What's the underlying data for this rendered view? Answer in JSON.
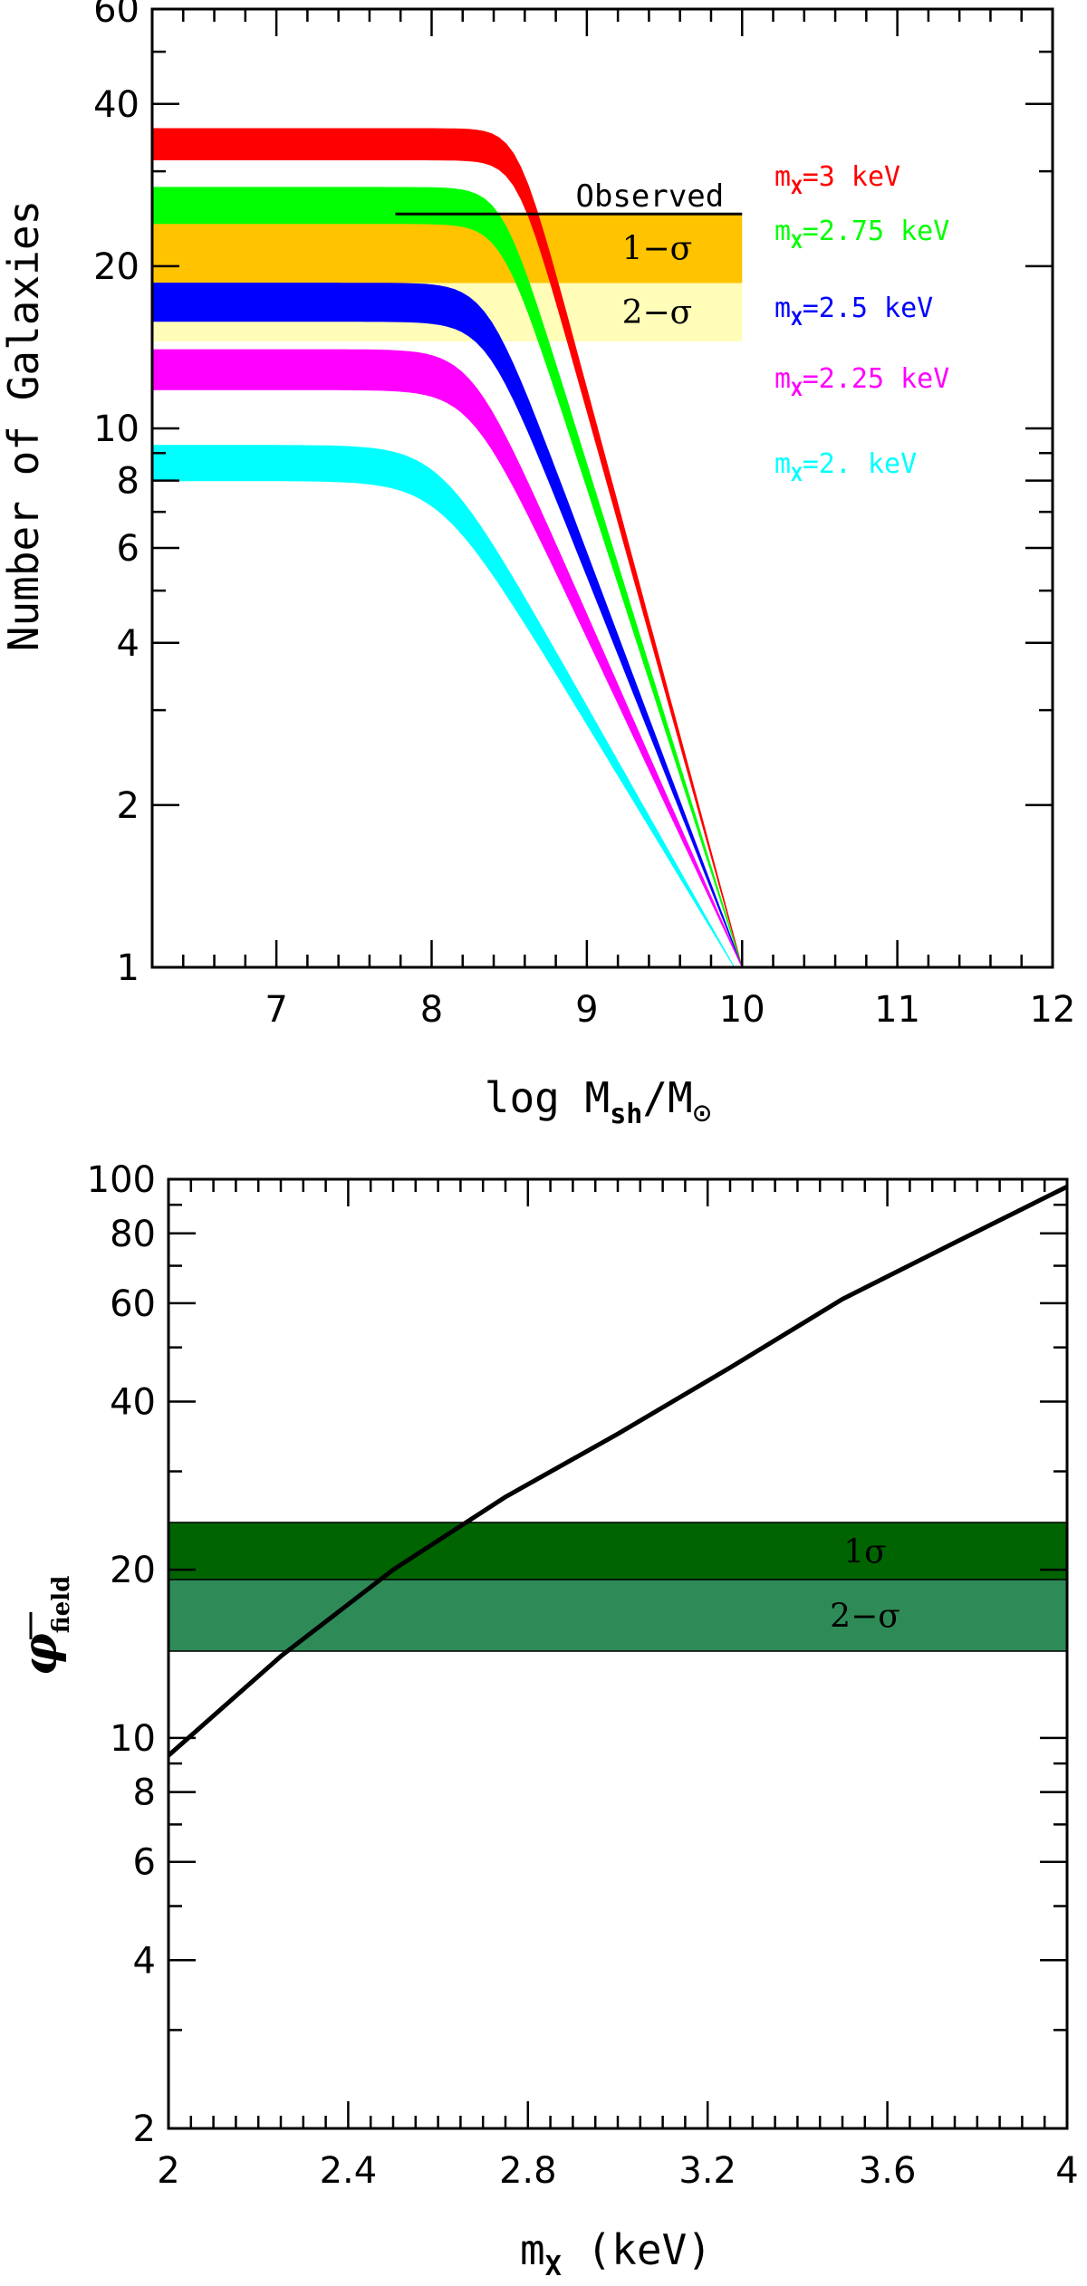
{
  "chart_data": [
    {
      "type": "area",
      "ylabel": "Number of Galaxies",
      "xlabel_parts": {
        "prefix": "log M",
        "sub1": "sh",
        "mid": "/M",
        "sun": "⊙"
      },
      "xscale": "linear",
      "yscale": "log",
      "xlim": [
        6.2,
        12
      ],
      "ylim": [
        1,
        60
      ],
      "xticks": [
        7,
        8,
        9,
        10,
        11,
        12
      ],
      "xtick_labels": [
        "7",
        "8",
        "9",
        "10",
        "11",
        "12"
      ],
      "yticks": [
        1,
        2,
        4,
        6,
        8,
        10,
        20,
        40,
        60
      ],
      "ytick_labels": [
        "1",
        "2",
        "4",
        "6",
        "8",
        "10",
        "20",
        "40",
        "60"
      ],
      "observed": {
        "label": "Observed",
        "value": 25,
        "x_range": [
          8.0,
          10.0
        ],
        "color": "#000000"
      },
      "bands": [
        {
          "label": "1−σ",
          "range": [
            18.6,
            25
          ],
          "x_range": [
            6.2,
            10.0
          ],
          "color": "#FFC300"
        },
        {
          "label": "2−σ",
          "range": [
            14.5,
            18.6
          ],
          "x_range": [
            6.2,
            10.0
          ],
          "color": "#FFFDB8"
        }
      ],
      "series": [
        {
          "name": "m_X=3 keV",
          "name_main": "m",
          "name_sub": "X",
          "name_rest": "=3 keV",
          "color": "#FF0000",
          "plateau": [
            31.5,
            36
          ],
          "x_drop": [
            8.1,
            10.0
          ]
        },
        {
          "name": "m_X=2.75 keV",
          "name_main": "m",
          "name_sub": "X",
          "name_rest": "=2.75 keV",
          "color": "#00FF00",
          "plateau": [
            24.0,
            28.0
          ],
          "x_drop": [
            8.0,
            10.0
          ]
        },
        {
          "name": "m_X=2.5 keV",
          "name_main": "m",
          "name_sub": "X",
          "name_rest": "=2.5 keV",
          "color": "#0000FF",
          "plateau": [
            15.8,
            18.6
          ],
          "x_drop": [
            7.9,
            10.0
          ]
        },
        {
          "name": "m_X=2.25 keV",
          "name_main": "m",
          "name_sub": "X",
          "name_rest": "=2.25 keV",
          "color": "#FF00FF",
          "plateau": [
            11.8,
            14.0
          ],
          "x_drop": [
            7.8,
            10.0
          ]
        },
        {
          "name": "m_X=2. keV",
          "name_main": "m",
          "name_sub": "X",
          "name_rest": "=2. keV",
          "color": "#00FFFF",
          "plateau": [
            8.0,
            9.3
          ],
          "x_drop": [
            7.6,
            9.95
          ]
        }
      ],
      "legend_position": "right"
    },
    {
      "type": "line",
      "ylabel_parts": {
        "main": "φ",
        "sub": "field"
      },
      "xlabel_parts": {
        "main": "m",
        "sub": "X",
        "rest": " (keV)"
      },
      "xscale": "linear",
      "yscale": "log",
      "xlim": [
        2,
        4
      ],
      "ylim": [
        2,
        100
      ],
      "xticks": [
        2,
        2.4,
        2.8,
        3.2,
        3.6,
        4
      ],
      "xtick_labels": [
        "2",
        "2.4",
        "2.8",
        "3.2",
        "3.6",
        "4"
      ],
      "yticks": [
        2,
        4,
        6,
        8,
        10,
        20,
        40,
        60,
        80,
        100
      ],
      "ytick_labels": [
        "2",
        "4",
        "6",
        "8",
        "10",
        "20",
        "40",
        "60",
        "80",
        "100"
      ],
      "bands": [
        {
          "label": "1σ",
          "range": [
            19.2,
            24.3
          ],
          "color": "#006400"
        },
        {
          "label": "2−σ",
          "range": [
            14.3,
            19.2
          ],
          "color": "#2E8B57"
        }
      ],
      "series": [
        {
          "x": [
            2.0,
            2.25,
            2.5,
            2.75,
            3.0,
            3.25,
            3.5,
            3.75,
            4.0
          ],
          "y": [
            9.3,
            14.0,
            20.0,
            27.0,
            35.0,
            46.0,
            61.0,
            77.0,
            97.0
          ],
          "color": "#000000"
        }
      ]
    }
  ]
}
